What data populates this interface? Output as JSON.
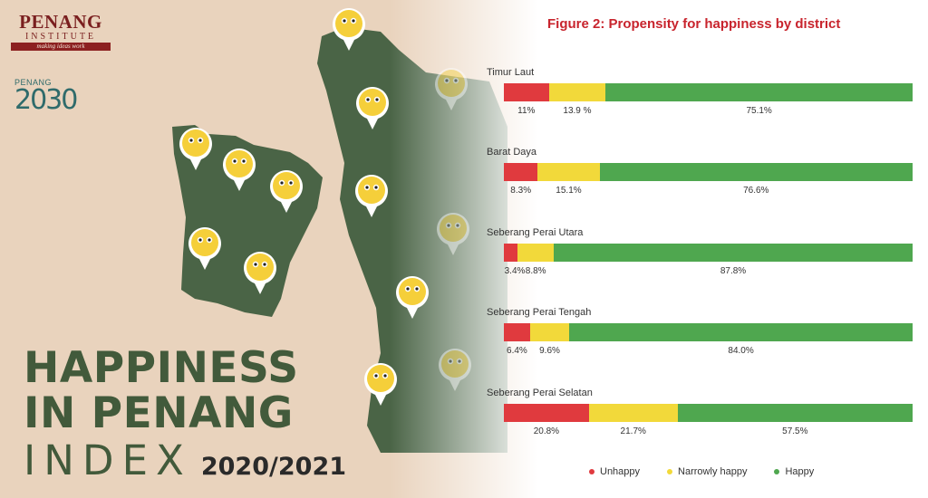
{
  "branding": {
    "institute_name": "PENANG",
    "institute_sub": "INSTITUTE",
    "institute_tagline": "making ideas work",
    "penang2030_label": "PENANG",
    "penang2030_year": "2030"
  },
  "headline": {
    "line1": "HAPPINESS",
    "line2": "IN PENANG",
    "line3": "INDEX",
    "years": "2020/2021"
  },
  "colors": {
    "unhappy": "#e03a3e",
    "narrowly_happy": "#f2d93a",
    "happy": "#4fa74f",
    "title": "#c8242d",
    "map_green": "#4a6446"
  },
  "chart_data": {
    "type": "bar",
    "orientation": "horizontal",
    "stacked": true,
    "title": "Figure 2: Propensity for happiness by district",
    "categories": [
      "Timur Laut",
      "Barat Daya",
      "Seberang Perai Utara",
      "Seberang Perai Tengah",
      "Seberang Perai Selatan"
    ],
    "series": [
      {
        "name": "Unhappy",
        "color": "#e03a3e",
        "values": [
          11,
          8.3,
          3.4,
          6.4,
          20.8
        ],
        "labels": [
          "11%",
          "8.3%",
          "3.4%",
          "6.4%",
          "20.8%"
        ]
      },
      {
        "name": "Narrowly happy",
        "color": "#f2d93a",
        "values": [
          13.9,
          15.1,
          8.8,
          9.6,
          21.7
        ],
        "labels": [
          "13.9 %",
          "15.1%",
          "8.8%",
          "9.6%",
          "21.7%"
        ]
      },
      {
        "name": "Happy",
        "color": "#4fa74f",
        "values": [
          75.1,
          76.6,
          87.8,
          84.0,
          57.5
        ],
        "labels": [
          "75.1%",
          "76.6%",
          "87.8%",
          "84.0%",
          "57.5%"
        ]
      }
    ],
    "legend_position": "bottom",
    "xlim": [
      0,
      100
    ],
    "grid": false
  }
}
